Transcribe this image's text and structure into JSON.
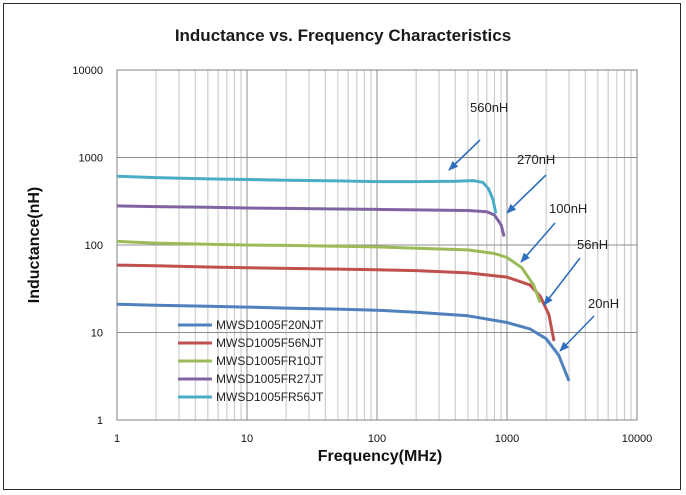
{
  "chart_data": {
    "type": "line",
    "title": "Inductance vs. Frequency Characteristics",
    "xlabel": "Frequency(MHz)",
    "ylabel": "Inductance(nH)",
    "xscale": "log",
    "yscale": "log",
    "xlim": [
      1,
      10000
    ],
    "ylim": [
      1,
      10000
    ],
    "x_ticks": [
      "1",
      "10",
      "100",
      "1000",
      "10000"
    ],
    "y_ticks": [
      "1",
      "10",
      "100",
      "1000",
      "10000"
    ],
    "grid": true,
    "legend_position": "bottom-left",
    "series": [
      {
        "name": "MWSD1005F20NJT",
        "color": "#4f81bd",
        "x": [
          1,
          2,
          5,
          10,
          20,
          50,
          100,
          200,
          500,
          1000,
          1500,
          2000,
          2500,
          3000
        ],
        "y": [
          21,
          20.5,
          20,
          19.5,
          19,
          18.5,
          18,
          17,
          15.5,
          13,
          11,
          8.5,
          5.5,
          2.8
        ]
      },
      {
        "name": "MWSD1005F56NJT",
        "color": "#c0504d",
        "x": [
          1,
          2,
          5,
          10,
          20,
          50,
          100,
          200,
          500,
          1000,
          1500,
          1800,
          2100,
          2300
        ],
        "y": [
          59,
          58,
          56,
          55,
          54,
          53,
          52,
          51,
          48,
          43,
          35,
          26,
          16,
          8
        ]
      },
      {
        "name": "MWSD1005FR10JT",
        "color": "#9bbb59",
        "x": [
          1,
          2,
          5,
          10,
          20,
          50,
          100,
          200,
          500,
          800,
          1000,
          1300,
          1600,
          1800
        ],
        "y": [
          110,
          105,
          102,
          100,
          99,
          97,
          95,
          92,
          88,
          80,
          72,
          55,
          35,
          22
        ]
      },
      {
        "name": "MWSD1005FR27JT",
        "color": "#8064a2",
        "x": [
          1,
          2,
          5,
          10,
          20,
          50,
          100,
          200,
          500,
          700,
          800,
          900,
          950
        ],
        "y": [
          280,
          275,
          270,
          265,
          262,
          258,
          255,
          252,
          248,
          240,
          220,
          170,
          125
        ]
      },
      {
        "name": "MWSD1005FR56JT",
        "color": "#4bacc6",
        "x": [
          1,
          2,
          5,
          10,
          20,
          50,
          100,
          200,
          400,
          550,
          650,
          720,
          780,
          820
        ],
        "y": [
          610,
          590,
          570,
          560,
          550,
          540,
          530,
          530,
          535,
          545,
          520,
          440,
          330,
          230
        ]
      }
    ],
    "annotations": [
      {
        "text": "560nH",
        "series": 4
      },
      {
        "text": "270nH",
        "series": 3
      },
      {
        "text": "100nH",
        "series": 2
      },
      {
        "text": "56nH",
        "series": 1
      },
      {
        "text": "20nH",
        "series": 0
      }
    ]
  }
}
